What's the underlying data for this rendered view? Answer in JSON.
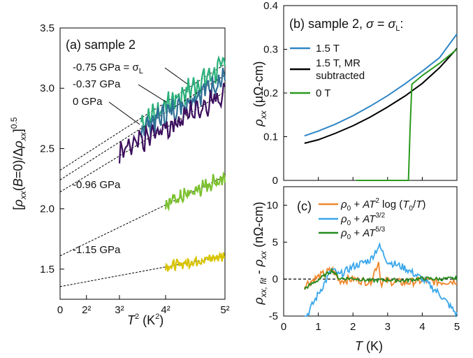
{
  "figure": {
    "panel_a": {
      "title": "(a) sample 2",
      "xlabel": "T² (K²)",
      "ylabel": "[ρxx(B=0)/Δρxx]^0.5",
      "x_ticks": [
        "0",
        "2²",
        "3²",
        "4²",
        "5²"
      ],
      "y_ticks": [
        "1.5",
        "2.0",
        "2.5",
        "3.0",
        "3.5"
      ]
    },
    "panel_b": {
      "title": "(b) sample 2, σ = σL:",
      "ylabel": "ρxx (μΩ-cm)",
      "y_ticks": [
        "0",
        "0.1",
        "0.2",
        "0.3",
        "0.4"
      ]
    },
    "panel_c": {
      "title": "(c)",
      "xlabel": "T (K)",
      "ylabel": "ρxx, fit - ρxx (nΩ-cm)",
      "x_ticks": [
        "0",
        "1",
        "2",
        "3",
        "4",
        "5"
      ],
      "y_ticks": [
        "-5",
        "0",
        "5",
        "10"
      ]
    }
  },
  "colors": {
    "teal": "#2ab07a",
    "steel": "#2f6f96",
    "purple": "#3d0f5e",
    "lime": "#7cc22f",
    "yellow": "#d8c400",
    "blue": "#2f86c5",
    "black": "#000000",
    "green": "#2a9a1e",
    "orange": "#f0872a",
    "lightblue": "#39a6ea",
    "darkgreen": "#238a1e"
  },
  "chart_data": [
    {
      "type": "line",
      "panel": "a",
      "title": "(a) sample 2",
      "xlabel": "T² (K²)",
      "ylabel": "[ρxx(B=0)/Δρxx]^0.5",
      "xlim": [
        0,
        25
      ],
      "ylim": [
        1.25,
        3.5
      ],
      "series": [
        {
          "name": "-0.75 GPa = σL",
          "x_range": [
            12.3,
            25
          ],
          "y_start": 2.72,
          "y_end": 3.19,
          "fit_intercept": 2.32,
          "fit_slope": 0.0352,
          "color": "teal"
        },
        {
          "name": "-0.37 GPa",
          "x_range": [
            12.3,
            25
          ],
          "y_start": 2.66,
          "y_end": 3.09,
          "fit_intercept": 2.24,
          "fit_slope": 0.0348,
          "color": "steel"
        },
        {
          "name": "0 GPa",
          "x_range": [
            9,
            25
          ],
          "y_start": 2.44,
          "y_end": 2.97,
          "fit_intercept": 2.14,
          "fit_slope": 0.0332,
          "color": "purple"
        },
        {
          "name": "-0.96 GPa",
          "x_range": [
            16,
            25
          ],
          "y_start": 2.04,
          "y_end": 2.26,
          "fit_intercept": 1.61,
          "fit_slope": 0.0264,
          "color": "lime"
        },
        {
          "name": "-1.15 GPa",
          "x_range": [
            16,
            25
          ],
          "y_start": 1.52,
          "y_end": 1.61,
          "fit_intercept": 1.355,
          "fit_slope": 0.0102,
          "color": "yellow"
        }
      ]
    },
    {
      "type": "line",
      "panel": "b",
      "title": "(b) sample 2, σ = σL:",
      "xlabel": "T (K)",
      "ylabel": "ρxx (μΩ-cm)",
      "xlim": [
        0,
        5
      ],
      "ylim": [
        0,
        0.4
      ],
      "series": [
        {
          "name": "1.5 T",
          "x": [
            0.6,
            1.0,
            1.5,
            2.0,
            2.5,
            3.0,
            3.5,
            4.0,
            4.5,
            5.0
          ],
          "y": [
            0.102,
            0.113,
            0.129,
            0.148,
            0.17,
            0.194,
            0.221,
            0.25,
            0.281,
            0.335
          ],
          "color": "blue"
        },
        {
          "name": "1.5 T, MR subtracted",
          "x": [
            0.6,
            1.0,
            1.5,
            2.0,
            2.5,
            3.0,
            3.5,
            4.0,
            4.5,
            5.0
          ],
          "y": [
            0.085,
            0.093,
            0.108,
            0.125,
            0.145,
            0.168,
            0.193,
            0.222,
            0.258,
            0.302
          ],
          "color": "black"
        },
        {
          "name": "0 T",
          "x": [
            2.1,
            3.6,
            3.65,
            3.7,
            4.0,
            4.5,
            5.0
          ],
          "y": [
            0.0,
            0.0,
            0.12,
            0.22,
            0.24,
            0.268,
            0.3
          ],
          "color": "green"
        }
      ]
    },
    {
      "type": "line",
      "panel": "c",
      "xlabel": "T (K)",
      "ylabel": "ρxx, fit - ρxx (nΩ-cm)",
      "xlim": [
        0,
        5
      ],
      "ylim": [
        -5,
        12.5
      ],
      "series": [
        {
          "name": "ρ0 + AT² log (T0/T)",
          "x": [
            0.6,
            1.0,
            1.4,
            1.6,
            2.0,
            2.5,
            2.75,
            2.8,
            3.0,
            3.5,
            4.0,
            4.5,
            5.0
          ],
          "y": [
            -0.8,
            0.3,
            1.3,
            -0.2,
            0.0,
            -0.4,
            2.5,
            -0.5,
            -0.3,
            -0.5,
            -0.2,
            -0.4,
            -0.2
          ],
          "color": "orange"
        },
        {
          "name": "ρ0 + AT^3/2",
          "x": [
            0.6,
            1.0,
            1.4,
            1.6,
            2.0,
            2.5,
            2.75,
            3.0,
            3.5,
            4.0,
            4.5,
            5.0
          ],
          "y": [
            -5.5,
            -2.0,
            1.3,
            0.5,
            1.7,
            2.6,
            4.5,
            2.4,
            1.5,
            0.0,
            -2.0,
            -4.8
          ],
          "color": "lightblue"
        },
        {
          "name": "ρ0 + AT^5/3",
          "x": [
            0.6,
            1.0,
            1.4,
            1.6,
            2.0,
            2.5,
            3.0,
            3.5,
            4.0,
            4.5,
            5.0
          ],
          "y": [
            -1.3,
            -0.1,
            1.2,
            0.1,
            0.1,
            -0.2,
            -0.1,
            -0.2,
            0.1,
            0.0,
            0.1
          ],
          "color": "darkgreen"
        }
      ]
    }
  ]
}
